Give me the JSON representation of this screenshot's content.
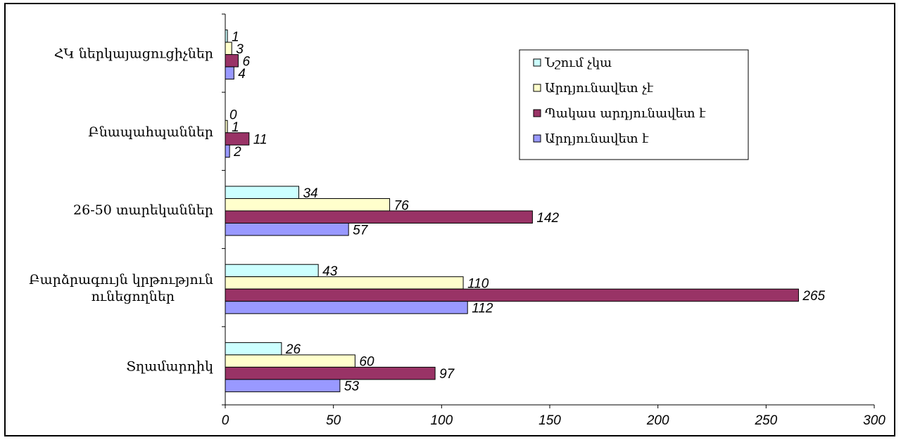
{
  "chart_data": {
    "type": "bar",
    "orientation": "horizontal",
    "categories": [
      "ՀԿ ներկայացուցիչներ",
      "Բնապահպաններ",
      "26-50 տարեկաններ",
      "Բարձրագույն կրթություն ունեցողներ",
      "Տղամարդիկ"
    ],
    "series": [
      {
        "name": "Նշում չկա",
        "color": "#ccffff",
        "values": [
          1,
          0,
          34,
          43,
          26
        ]
      },
      {
        "name": "Արդյունավետ չէ",
        "color": "#ffffcc",
        "values": [
          3,
          1,
          76,
          110,
          60
        ]
      },
      {
        "name": "Պակաս արդյունավետ է",
        "color": "#993366",
        "values": [
          6,
          11,
          142,
          265,
          97
        ]
      },
      {
        "name": "Արդյունավետ է",
        "color": "#9999ff",
        "values": [
          4,
          2,
          57,
          112,
          53
        ]
      }
    ],
    "xlim": [
      0,
      300
    ],
    "xticks": [
      "0",
      "50",
      "100",
      "150",
      "200",
      "250",
      "300"
    ],
    "legend_position": "top-right",
    "grid": false
  }
}
